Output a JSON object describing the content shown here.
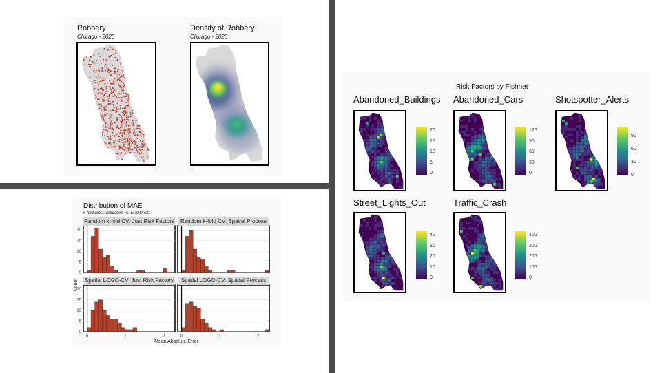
{
  "robbery": {
    "title": "Robbery",
    "subtitle": "Chicago - 2020",
    "density_title": "Density of Robbery",
    "density_subtitle": "Chicago - 2020"
  },
  "mae": {
    "title": "Distribution of MAE",
    "subtitle": "k-fold cross validation vs. LOGO-CV",
    "ylabel": "Count",
    "xlabel": "Mean Absolute Error",
    "x_ticks": [
      "0",
      "1",
      "2"
    ],
    "y_ticks": [
      "0",
      "5",
      "10",
      "15",
      "20"
    ],
    "facets": [
      "Random k-fold CV: Just Risk Factors",
      "Random k-fold CV: Spatial Process",
      "Spatial LOGO-CV: Just Risk Factors",
      "Spatial LOGO-CV: Spatial Process"
    ]
  },
  "risk": {
    "title": "Risk Factors by Fishnet",
    "maps": [
      {
        "title": "Abandoned_Buildings",
        "ticks": [
          "20",
          "15",
          "10",
          "5",
          "0"
        ]
      },
      {
        "title": "Abandoned_Cars",
        "ticks": [
          "120",
          "90",
          "60",
          "30",
          "0"
        ]
      },
      {
        "title": "Shotspotter_Alerts",
        "ticks": [
          "90",
          "60",
          "30",
          "0"
        ]
      },
      {
        "title": "Street_Lights_Out",
        "ticks": [
          "40",
          "30",
          "20",
          "10",
          "0"
        ]
      },
      {
        "title": "Traffic_Crash",
        "ticks": [
          "400",
          "300",
          "200",
          "100",
          "0"
        ]
      }
    ]
  },
  "colors": {
    "bar_fill": "#b5412c",
    "robbery_points": "#c0392b",
    "map_fill": "#d9d9d9",
    "viridis_low": "#440154",
    "viridis_high": "#fde725"
  },
  "chart_data": [
    {
      "type": "bar",
      "title": "Distribution of MAE",
      "subtitle": "k-fold cross validation vs. LOGO-CV",
      "xlabel": "Mean Absolute Error",
      "ylabel": "Count",
      "xlim": [
        -0.1,
        2.3
      ],
      "ylim": [
        0,
        22
      ],
      "bin_width": 0.1,
      "bin_starts": [
        0.0,
        0.1,
        0.2,
        0.3,
        0.4,
        0.5,
        0.6,
        0.7,
        0.8,
        0.9,
        1.0,
        1.1,
        1.2,
        1.3,
        1.4,
        1.5,
        1.6,
        1.7,
        1.8,
        1.9,
        2.0,
        2.1,
        2.2
      ],
      "series": [
        {
          "name": "Random k-fold CV: Just Risk Factors",
          "values": [
            1,
            17,
            21,
            11,
            7,
            8,
            3,
            1,
            0,
            0,
            0,
            0,
            0,
            1,
            1,
            0,
            0,
            0,
            0,
            0,
            2,
            0,
            0
          ]
        },
        {
          "name": "Random k-fold CV: Spatial Process",
          "values": [
            1,
            17,
            20,
            11,
            7,
            6,
            3,
            1,
            0,
            0,
            0,
            0,
            1,
            1,
            0,
            0,
            0,
            0,
            0,
            0,
            0,
            0,
            1
          ]
        },
        {
          "name": "Spatial LOGO-CV: Just Risk Factors",
          "values": [
            2,
            10,
            14,
            15,
            10,
            8,
            6,
            6,
            4,
            2,
            1,
            1,
            2,
            0,
            0,
            0,
            0,
            0,
            0,
            0,
            0,
            0,
            0
          ]
        },
        {
          "name": "Spatial LOGO-CV: Spatial Process",
          "values": [
            2,
            13,
            14,
            12,
            11,
            6,
            4,
            2,
            1,
            0,
            1,
            0,
            0,
            0,
            0,
            0,
            0,
            0,
            0,
            0,
            0,
            0,
            1
          ]
        }
      ]
    }
  ]
}
